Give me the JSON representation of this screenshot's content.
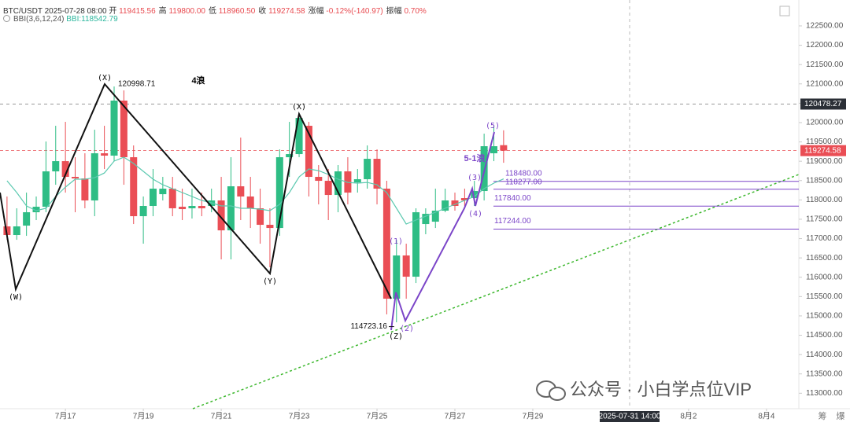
{
  "chart_data": {
    "type": "candlestick",
    "header": {
      "symbol": "BTC/USDT",
      "time": "2025-07-28 08:00",
      "fields": [
        {
          "label": "开",
          "value": "119415.56"
        },
        {
          "label": "高",
          "value": "119800.00"
        },
        {
          "label": "低",
          "value": "118960.50"
        },
        {
          "label": "收",
          "value": "119274.58"
        },
        {
          "label": "涨幅",
          "value": "-0.12%(-140.97)"
        },
        {
          "label": "振幅",
          "value": "0.70%"
        }
      ]
    },
    "indicator": {
      "name": "BBI(3,6,12,24)",
      "value": "BBI:118542.79"
    },
    "x": [
      15.5,
      15.75,
      16,
      16.25,
      16.5,
      16.75,
      17,
      17.25,
      17.5,
      17.75,
      18,
      18.25,
      18.5,
      18.75,
      19,
      19.25,
      19.5,
      19.75,
      20,
      20.25,
      20.5,
      20.75,
      21,
      21.25,
      21.5,
      21.75,
      22,
      22.25,
      22.5,
      22.75,
      23,
      23.25,
      23.5,
      23.75,
      24,
      24.25,
      24.5,
      24.75,
      25,
      25.25,
      25.5,
      25.75,
      26,
      26.25,
      26.5,
      26.75,
      27,
      27.25,
      27.5,
      27.75,
      28,
      28.25
    ],
    "open": [
      117315,
      117092,
      117335,
      117681,
      117823,
      118738,
      119002,
      118596,
      118555,
      117986,
      119206,
      119145,
      120568,
      119104,
      117579,
      117844,
      118148,
      118291,
      117823,
      117783,
      117844,
      117844,
      117986,
      117213,
      118352,
      118088,
      117783,
      117356,
      117274,
      119104,
      119185,
      119917,
      118596,
      118494,
      118128,
      118738,
      118453,
      118535,
      119063,
      118291,
      115445,
      116563,
      116014,
      117376,
      117437,
      117722,
      117986,
      118047,
      118047,
      118230,
      119206,
      119415.56
    ],
    "high": [
      118088,
      117783,
      118189,
      118088,
      119511,
      119917,
      120019,
      119104,
      119206,
      119815,
      119917,
      120934,
      120832,
      119409,
      118088,
      118799,
      118596,
      118596,
      118291,
      118291,
      118189,
      118291,
      118596,
      119104,
      119612,
      118596,
      118291,
      117783,
      119307,
      120019,
      120222,
      120019,
      118901,
      118799,
      118901,
      119104,
      118799,
      119409,
      119307,
      118494,
      116969,
      116868,
      117783,
      117783,
      118291,
      118291,
      118189,
      118291,
      118494,
      119714,
      119917,
      119800
    ],
    "low": [
      116969,
      116969,
      117071,
      117478,
      117681,
      118392,
      118189,
      117681,
      117783,
      117579,
      118799,
      119002,
      118392,
      117376,
      116868,
      117579,
      117986,
      117579,
      117478,
      117518,
      117579,
      117681,
      116462,
      116462,
      117478,
      117274,
      116868,
      116258,
      117071,
      118596,
      119104,
      118088,
      117884,
      117478,
      117681,
      117884,
      118189,
      118291,
      117884,
      115038,
      114835,
      115445,
      115851,
      117112,
      117274,
      117681,
      117722,
      117844,
      117844,
      117986,
      119002,
      118960.5
    ],
    "close": [
      117092,
      117315,
      117681,
      117823,
      118738,
      119002,
      118596,
      118555,
      117986,
      119206,
      119145,
      120568,
      119104,
      117579,
      117844,
      118291,
      118291,
      117783,
      117762,
      117844,
      117783,
      117986,
      117213,
      118352,
      118088,
      117783,
      117356,
      117274,
      119104,
      119185,
      120120,
      118596,
      118494,
      118128,
      118738,
      118189,
      118535,
      119063,
      118291,
      115445,
      116563,
      116014,
      117681,
      117640,
      117722,
      117986,
      117844,
      117986,
      118230,
      119389,
      119389,
      119274.58
    ],
    "up_color": "#2ebd85",
    "down_color": "#ea4e55",
    "bbi": {
      "color": "#5cc9b0",
      "values": [
        118494,
        118189,
        117844,
        117722,
        117783,
        118088,
        118331,
        118535,
        118535,
        118575,
        118697,
        119002,
        119104,
        118941,
        118738,
        118535,
        118392,
        118291,
        118189,
        118088,
        117986,
        117925,
        117844,
        117844,
        117783,
        117783,
        117762,
        117722,
        117884,
        118189,
        118596,
        118799,
        118758,
        118657,
        118535,
        118453,
        118433,
        118453,
        118392,
        118189,
        117783,
        117376,
        117478,
        117579,
        117681,
        117783,
        117884,
        117986,
        118088,
        118291,
        118433,
        118542.79
      ]
    },
    "ylim": [
      112600,
      123170
    ],
    "yticks": [
      {
        "value": 113000,
        "label": "113000.00"
      },
      {
        "value": 113500,
        "label": "113500.00"
      },
      {
        "value": 114000,
        "label": "114000.00"
      },
      {
        "value": 114500,
        "label": "114500.00"
      },
      {
        "value": 115000,
        "label": "115000.00"
      },
      {
        "value": 115500,
        "label": "115500.00"
      },
      {
        "value": 116000,
        "label": "116000.00"
      },
      {
        "value": 116500,
        "label": "116500.00"
      },
      {
        "value": 117000,
        "label": "117000.00"
      },
      {
        "value": 117500,
        "label": "117500.00"
      },
      {
        "value": 118000,
        "label": "118000.00"
      },
      {
        "value": 118500,
        "label": "118500.00"
      },
      {
        "value": 119000,
        "label": "119000.00"
      },
      {
        "value": 119500,
        "label": "119500.00"
      },
      {
        "value": 120000,
        "label": "120000.00"
      },
      {
        "value": 120500,
        "label": "120500.00"
      },
      {
        "value": 121000,
        "label": "121000.00"
      },
      {
        "value": 121500,
        "label": "121500.00"
      },
      {
        "value": 122000,
        "label": "122000.00"
      },
      {
        "value": 122500,
        "label": "122500.00"
      }
    ],
    "xlim": [
      15.32,
      35.77
    ],
    "xticks": [
      {
        "value": 17,
        "label": "7月17"
      },
      {
        "value": 19,
        "label": "7月19"
      },
      {
        "value": 21,
        "label": "7月21"
      },
      {
        "value": 23,
        "label": "7月23"
      },
      {
        "value": 25,
        "label": "7月25"
      },
      {
        "value": 27,
        "label": "7月27"
      },
      {
        "value": 29,
        "label": "7月29"
      },
      {
        "value": 33,
        "label": "8月2"
      },
      {
        "value": 35,
        "label": "8月4"
      }
    ],
    "levels": [
      {
        "value": 118480,
        "label": "118480.00"
      },
      {
        "value": 118277,
        "label": "118277.00"
      },
      {
        "value": 117840,
        "label": "117840.00"
      },
      {
        "value": 117244,
        "label": "117244.00"
      }
    ],
    "last_price": 119274.58,
    "crosshair": {
      "time": "2025-07-31 14:00",
      "price": 120478.27
    },
    "annotations": [
      "(W)",
      "(X)",
      "(Y)",
      "(X)",
      "(Z)",
      "(1)",
      "(2)",
      "(3)",
      "(4)",
      "(5)",
      "4浪",
      "5-1浪"
    ],
    "point_labels": [
      120998.71,
      114723.16
    ],
    "watermark": "公众号 · 小白学点位VIP",
    "footer_icons": [
      "筹",
      "爆"
    ]
  }
}
